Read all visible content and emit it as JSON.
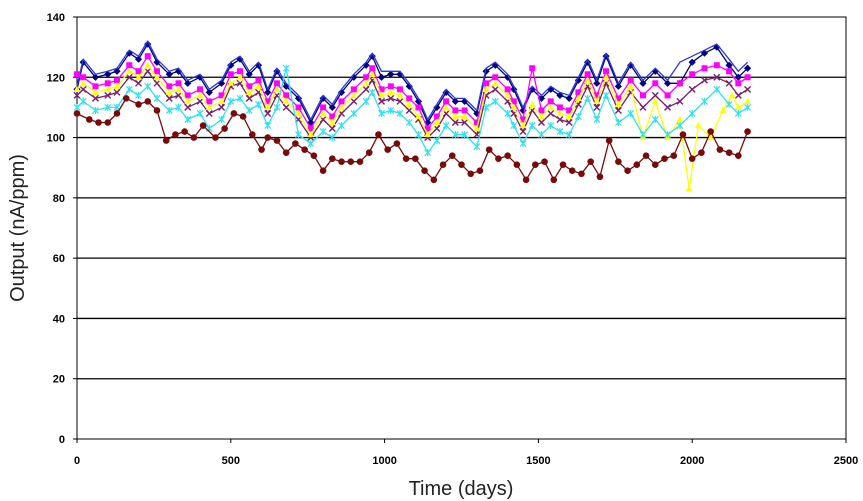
{
  "chart_data": {
    "type": "line",
    "title": "",
    "xlabel": "Time (days)",
    "ylabel": "Output (nA/ppm)",
    "xlim": [
      0,
      2500
    ],
    "ylim": [
      0,
      140
    ],
    "x_ticks": [
      0,
      500,
      1000,
      1500,
      2000,
      2500
    ],
    "y_ticks": [
      0,
      20,
      40,
      60,
      80,
      100,
      120,
      140
    ],
    "grid": "horizontal",
    "legend": "none",
    "series": [
      {
        "color": "#000080",
        "marker": "diamond",
        "x": [
          0,
          20,
          60,
          100,
          130,
          170,
          200,
          230,
          260,
          300,
          330,
          360,
          400,
          430,
          470,
          500,
          530,
          560,
          590,
          620,
          650,
          680,
          720,
          760,
          800,
          830,
          860,
          900,
          940,
          960,
          990,
          1020,
          1050,
          1080,
          1110,
          1140,
          1170,
          1200,
          1230,
          1260,
          1300,
          1330,
          1360,
          1400,
          1420,
          1450,
          1480,
          1510,
          1540,
          1570,
          1600,
          1630,
          1660,
          1690,
          1720,
          1760,
          1800,
          1840,
          1880,
          1920,
          1960,
          2000,
          2040,
          2080,
          2120,
          2150,
          2180
        ],
        "y": [
          116,
          125,
          120,
          121,
          122,
          128,
          126,
          131,
          125,
          121,
          122,
          118,
          120,
          115,
          118,
          124,
          126,
          121,
          124,
          115,
          122,
          117,
          113,
          105,
          113,
          110,
          115,
          120,
          124,
          127,
          120,
          121,
          121,
          117,
          112,
          105,
          110,
          115,
          112,
          112,
          108,
          122,
          124,
          120,
          116,
          109,
          116,
          113,
          116,
          114,
          113,
          119,
          125,
          118,
          127,
          117,
          124,
          118,
          122,
          118,
          118,
          125,
          128,
          130,
          124,
          120,
          123
        ]
      },
      {
        "color": "#2a3bd6",
        "marker": "none",
        "x": [
          0,
          20,
          60,
          100,
          130,
          170,
          200,
          230,
          260,
          300,
          330,
          360,
          400,
          430,
          470,
          500,
          530,
          560,
          590,
          620,
          650,
          680,
          720,
          760,
          800,
          830,
          860,
          900,
          940,
          960,
          990,
          1020,
          1050,
          1080,
          1110,
          1140,
          1170,
          1200,
          1230,
          1260,
          1300,
          1330,
          1360,
          1400,
          1420,
          1450,
          1480,
          1510,
          1540,
          1570,
          1600,
          1630,
          1660,
          1690,
          1720,
          1760,
          1800,
          1840,
          1880,
          1920,
          1960,
          2000,
          2040,
          2080,
          2120,
          2150,
          2180
        ],
        "y": [
          117,
          126,
          121,
          122,
          123,
          129,
          127,
          132,
          126,
          122,
          123,
          119,
          121,
          116,
          119,
          125,
          127,
          122,
          125,
          116,
          123,
          118,
          114,
          106,
          114,
          111,
          116,
          121,
          125,
          128,
          122,
          122,
          122,
          118,
          113,
          106,
          111,
          116,
          113,
          113,
          109,
          123,
          125,
          121,
          117,
          110,
          117,
          114,
          117,
          115,
          114,
          120,
          126,
          119,
          128,
          118,
          125,
          119,
          123,
          119,
          125,
          127,
          129,
          131,
          126,
          122,
          125
        ]
      },
      {
        "color": "#ff00ff",
        "marker": "square",
        "x": [
          0,
          20,
          60,
          100,
          130,
          170,
          200,
          230,
          260,
          300,
          330,
          360,
          400,
          430,
          470,
          500,
          530,
          560,
          590,
          620,
          650,
          680,
          720,
          760,
          800,
          830,
          860,
          900,
          940,
          960,
          990,
          1020,
          1050,
          1080,
          1110,
          1140,
          1170,
          1200,
          1230,
          1260,
          1300,
          1330,
          1360,
          1400,
          1420,
          1450,
          1480,
          1510,
          1540,
          1570,
          1600,
          1630,
          1660,
          1690,
          1720,
          1760,
          1800,
          1840,
          1880,
          1920,
          1960,
          2000,
          2040,
          2080,
          2120,
          2150,
          2180
        ],
        "y": [
          121,
          120,
          117,
          118,
          119,
          124,
          122,
          127,
          122,
          117,
          118,
          114,
          116,
          112,
          114,
          121,
          122,
          117,
          119,
          112,
          118,
          114,
          110,
          103,
          110,
          107,
          112,
          116,
          120,
          123,
          116,
          117,
          116,
          113,
          110,
          103,
          107,
          112,
          109,
          109,
          105,
          118,
          120,
          116,
          112,
          106,
          123,
          109,
          112,
          110,
          109,
          115,
          121,
          114,
          122,
          113,
          119,
          114,
          118,
          114,
          118,
          121,
          123,
          124,
          122,
          118,
          120
        ]
      },
      {
        "color": "#7a1f6e",
        "marker": "x",
        "x": [
          0,
          20,
          60,
          100,
          130,
          170,
          200,
          230,
          260,
          300,
          330,
          360,
          400,
          430,
          470,
          500,
          530,
          560,
          590,
          620,
          650,
          680,
          720,
          760,
          800,
          830,
          860,
          900,
          940,
          960,
          990,
          1020,
          1050,
          1080,
          1110,
          1140,
          1170,
          1200,
          1230,
          1260,
          1300,
          1330,
          1360,
          1400,
          1420,
          1450,
          1480,
          1510,
          1540,
          1570,
          1600,
          1630,
          1660,
          1690,
          1720,
          1760,
          1800,
          1840,
          1880,
          1920,
          1960,
          2000,
          2040,
          2080,
          2120,
          2150,
          2180
        ],
        "y": [
          114,
          116,
          113,
          114,
          115,
          120,
          118,
          122,
          118,
          113,
          114,
          110,
          112,
          108,
          110,
          117,
          118,
          113,
          115,
          108,
          114,
          110,
          106,
          100,
          106,
          103,
          108,
          112,
          116,
          119,
          112,
          113,
          112,
          109,
          106,
          100,
          103,
          108,
          105,
          105,
          101,
          114,
          116,
          112,
          108,
          102,
          109,
          105,
          108,
          106,
          105,
          111,
          117,
          110,
          118,
          109,
          115,
          110,
          114,
          110,
          112,
          116,
          119,
          120,
          118,
          114,
          116
        ]
      },
      {
        "color": "#ffff00",
        "marker": "triangle",
        "x": [
          0,
          20,
          60,
          100,
          130,
          170,
          200,
          230,
          260,
          300,
          330,
          360,
          400,
          430,
          470,
          500,
          530,
          560,
          590,
          620,
          650,
          680,
          720,
          760,
          800,
          830,
          860,
          900,
          940,
          960,
          990,
          1020,
          1050,
          1080,
          1110,
          1140,
          1170,
          1200,
          1230,
          1260,
          1300,
          1330,
          1360,
          1400,
          1420,
          1450,
          1480,
          1510,
          1540,
          1570,
          1600,
          1630,
          1660,
          1690,
          1720,
          1760,
          1800,
          1840,
          1880,
          1920,
          1960,
          1990,
          2020,
          2060,
          2100,
          2130,
          2150,
          2180
        ],
        "y": [
          116,
          118,
          115,
          116,
          117,
          122,
          120,
          124,
          120,
          115,
          116,
          112,
          114,
          110,
          112,
          118,
          120,
          115,
          117,
          110,
          116,
          112,
          108,
          101,
          108,
          105,
          110,
          114,
          118,
          121,
          114,
          115,
          114,
          111,
          107,
          101,
          105,
          110,
          107,
          107,
          103,
          116,
          118,
          114,
          110,
          104,
          111,
          107,
          110,
          108,
          107,
          113,
          119,
          112,
          120,
          111,
          117,
          100,
          112,
          100,
          106,
          83,
          104,
          100,
          109,
          114,
          110,
          112
        ]
      },
      {
        "color": "#33e0f0",
        "marker": "star",
        "x": [
          0,
          20,
          60,
          100,
          130,
          170,
          200,
          230,
          260,
          300,
          330,
          360,
          400,
          430,
          470,
          500,
          530,
          560,
          590,
          620,
          650,
          680,
          720,
          760,
          800,
          830,
          860,
          900,
          940,
          960,
          990,
          1020,
          1050,
          1080,
          1110,
          1140,
          1170,
          1200,
          1230,
          1260,
          1300,
          1330,
          1360,
          1400,
          1420,
          1450,
          1480,
          1510,
          1540,
          1570,
          1600,
          1630,
          1660,
          1690,
          1720,
          1760,
          1800,
          1840,
          1880,
          1920,
          1960,
          2000,
          2040,
          2080,
          2120,
          2150,
          2180
        ],
        "y": [
          110,
          112,
          109,
          110,
          110,
          116,
          114,
          117,
          113,
          109,
          110,
          106,
          108,
          103,
          106,
          112,
          113,
          109,
          111,
          104,
          110,
          123,
          101,
          98,
          102,
          100,
          104,
          108,
          112,
          115,
          108,
          109,
          108,
          105,
          101,
          95,
          99,
          104,
          101,
          101,
          97,
          110,
          112,
          108,
          104,
          98,
          104,
          101,
          104,
          102,
          101,
          107,
          113,
          106,
          114,
          105,
          108,
          101,
          106,
          101,
          104,
          108,
          112,
          116,
          111,
          108,
          110
        ]
      },
      {
        "color": "#7a0a0a",
        "marker": "circle",
        "x": [
          0,
          40,
          70,
          100,
          130,
          160,
          200,
          230,
          260,
          290,
          320,
          350,
          380,
          410,
          450,
          480,
          510,
          540,
          570,
          600,
          620,
          650,
          680,
          710,
          740,
          770,
          800,
          830,
          860,
          890,
          920,
          950,
          980,
          1010,
          1040,
          1070,
          1100,
          1130,
          1160,
          1190,
          1220,
          1250,
          1280,
          1310,
          1340,
          1370,
          1400,
          1430,
          1460,
          1490,
          1520,
          1550,
          1580,
          1610,
          1640,
          1670,
          1700,
          1730,
          1760,
          1790,
          1820,
          1850,
          1880,
          1910,
          1940,
          1970,
          2000,
          2030,
          2060,
          2090,
          2120,
          2150,
          2180
        ],
        "y": [
          108,
          106,
          105,
          105,
          108,
          113,
          111,
          112,
          109,
          99,
          101,
          102,
          100,
          104,
          100,
          103,
          108,
          107,
          101,
          96,
          100,
          99,
          95,
          98,
          96,
          94,
          89,
          93,
          92,
          92,
          92,
          95,
          101,
          96,
          98,
          93,
          93,
          89,
          86,
          91,
          94,
          91,
          88,
          89,
          96,
          93,
          94,
          91,
          86,
          91,
          92,
          86,
          91,
          89,
          88,
          92,
          87,
          99,
          92,
          89,
          91,
          94,
          91,
          93,
          94,
          101,
          93,
          95,
          102,
          96,
          95,
          94,
          102
        ]
      }
    ]
  }
}
